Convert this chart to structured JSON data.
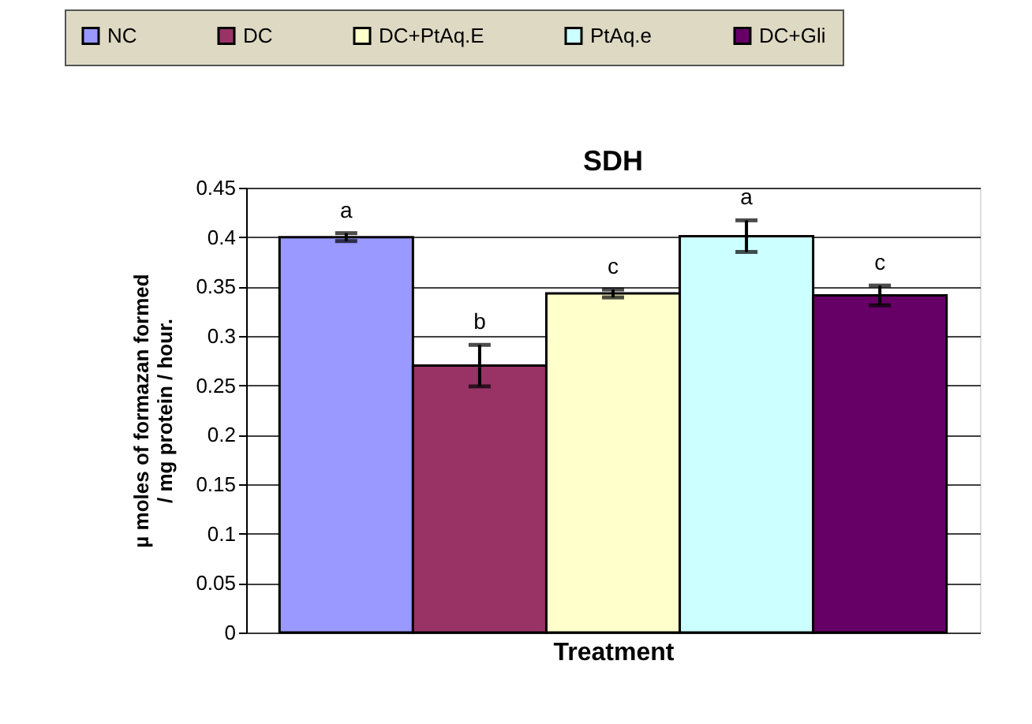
{
  "chart_data": {
    "type": "bar",
    "title": "SDH",
    "xlabel": "Treatment",
    "ylabel": "µ moles of formazan formed / mg protein / hour.",
    "categories": [
      null
    ],
    "series": [
      {
        "name": "NC",
        "color": "#9999ff",
        "values": [
          0.4
        ],
        "errors": [
          0.004
        ]
      },
      {
        "name": "DC",
        "color": "#993366",
        "values": [
          0.27
        ],
        "errors": [
          0.021
        ]
      },
      {
        "name": "DC+PtAq.E",
        "color": "#ffffcc",
        "values": [
          0.343
        ],
        "errors": [
          0.004
        ]
      },
      {
        "name": "PtAq.e",
        "color": "#ccffff",
        "values": [
          0.401
        ],
        "errors": [
          0.016
        ]
      },
      {
        "name": "DC+Gli",
        "color": "#660066",
        "values": [
          0.341
        ],
        "errors": [
          0.01
        ]
      }
    ],
    "annotations": [
      "a",
      "b",
      "c",
      "a",
      "c"
    ],
    "ylim": [
      0,
      0.45
    ],
    "yticks": [
      0,
      0.05,
      0.1,
      0.15,
      0.2,
      0.25,
      0.3,
      0.35,
      0.4,
      0.45
    ],
    "grid": "y",
    "legend": "top",
    "tick_labels": "y"
  }
}
